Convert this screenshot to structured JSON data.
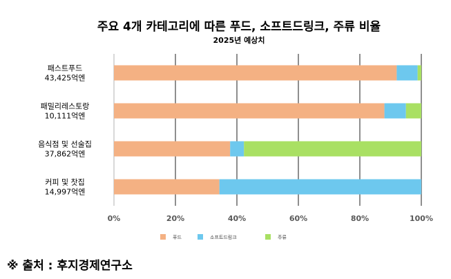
{
  "chart_data": {
    "type": "bar",
    "orientation": "horizontal",
    "stacked": "percent",
    "title": "주요 4개 카테고리에 따른 푸드, 소프트드링크, 주류 비율",
    "subtitle": "2025년 예상치",
    "categories": [
      {
        "name": "패스트푸드",
        "total": "43,425억엔"
      },
      {
        "name": "패밀리레스토랑",
        "total": "10,111억엔"
      },
      {
        "name": "음식점 및 선술집",
        "total": "37,862억엔"
      },
      {
        "name": "커피 및 찻집",
        "total": "14,997억엔"
      }
    ],
    "series": [
      {
        "name": "푸드",
        "color": "#F4B183",
        "values": [
          92,
          88,
          37.8,
          34.3
        ]
      },
      {
        "name": "소프트드링크",
        "color": "#6DC8EE",
        "values": [
          6.8,
          7,
          4.5,
          65.7
        ]
      },
      {
        "name": "주류",
        "color": "#A9E063",
        "values": [
          1.2,
          5,
          57.7,
          0
        ]
      }
    ],
    "xlim": [
      0,
      100
    ],
    "x_ticks": [
      "0%",
      "20%",
      "40%",
      "60%",
      "80%",
      "100%"
    ],
    "grid": "vertical",
    "legend_position": "bottom"
  },
  "source": "※ 출처 : 후지경제연구소"
}
